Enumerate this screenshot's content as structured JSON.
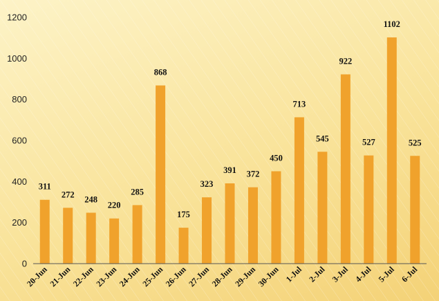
{
  "chart_data": {
    "type": "bar",
    "categories": [
      "20-Jun",
      "21-Jun",
      "22-Jun",
      "23-Jun",
      "24-Jun",
      "25-Jun",
      "26-Jun",
      "27-Jun",
      "28-Jun",
      "29-Jun",
      "30-Jun",
      "1-Jul",
      "2-Jul",
      "3-Jul",
      "4-Jul",
      "5-Jul",
      "6-Jul"
    ],
    "values": [
      311,
      272,
      248,
      220,
      285,
      868,
      175,
      323,
      391,
      372,
      450,
      713,
      545,
      922,
      527,
      1102,
      525
    ],
    "title": "",
    "xlabel": "",
    "ylabel": "",
    "ylim": [
      0,
      1200
    ],
    "yticks": [
      0,
      200,
      400,
      600,
      800,
      1000,
      1200
    ],
    "grid": false,
    "legend": "none",
    "data_labels": true
  },
  "colors": {
    "bar": "#f0a22c",
    "axis": "#555555"
  }
}
